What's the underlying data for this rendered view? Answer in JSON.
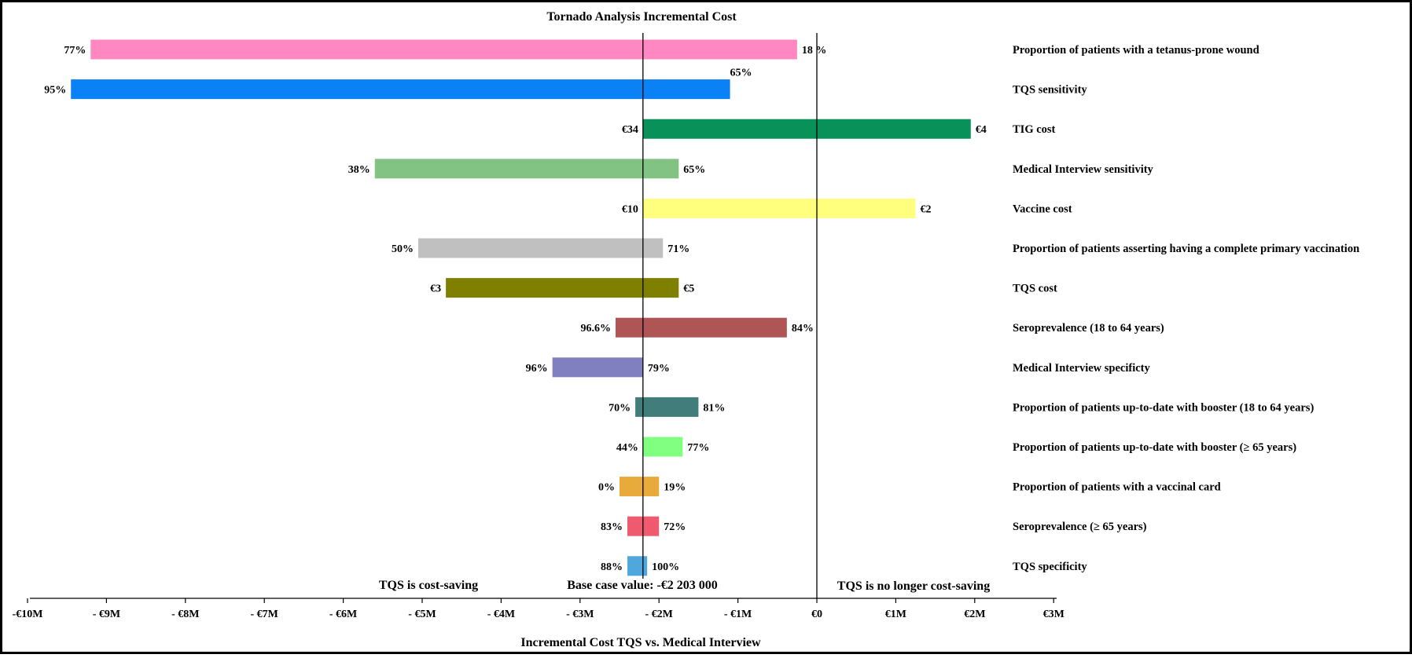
{
  "chart_data": {
    "type": "bar",
    "orientation": "horizontal",
    "title": "Tornado Analysis Incremental Cost",
    "xlabel": "Incremental Cost TQS vs. Medical Interview",
    "unit": "M€",
    "xlim": [
      -10,
      3
    ],
    "base_value": -2.203,
    "base_label": "Base case value: -€2 203 000",
    "region_labels": {
      "left": "TQS is cost-saving",
      "right": "TQS is no longer cost-saving"
    },
    "ticks": [
      {
        "value": -10,
        "label": "-€10M"
      },
      {
        "value": -9,
        "label": "- €9M"
      },
      {
        "value": -8,
        "label": "- €8M"
      },
      {
        "value": -7,
        "label": "- €7M"
      },
      {
        "value": -6,
        "label": "- €6M"
      },
      {
        "value": -5,
        "label": "- €5M"
      },
      {
        "value": -4,
        "label": "- €4M"
      },
      {
        "value": -3,
        "label": "- €3M"
      },
      {
        "value": -2,
        "label": "- €2M"
      },
      {
        "value": -1,
        "label": "- €1M"
      },
      {
        "value": 0,
        "label": "€0"
      },
      {
        "value": 1,
        "label": "€1M"
      },
      {
        "value": 2,
        "label": "€2M"
      },
      {
        "value": 3,
        "label": "€3M"
      }
    ],
    "bars": [
      {
        "name": "Proportion of patients with a tetanus-prone wound",
        "low": -9.2,
        "high": -0.25,
        "low_label": "77%",
        "high_label": "18 %",
        "color": "#FF88C2"
      },
      {
        "name": "TQS sensitivity",
        "low": -9.45,
        "high": -1.1,
        "low_label": "95%",
        "high_label": "65%",
        "color": "#0A82F5"
      },
      {
        "name": "TIG cost",
        "low": -2.203,
        "high": 1.95,
        "low_label": "€34",
        "high_label": "€4",
        "color": "#08925A"
      },
      {
        "name": "Medical Interview sensitivity",
        "low": -5.6,
        "high": -1.75,
        "low_label": "38%",
        "high_label": "65%",
        "color": "#82C383"
      },
      {
        "name": "Vaccine cost",
        "low": -2.203,
        "high": 1.25,
        "low_label": "€10",
        "high_label": "€2",
        "color": "#FFFF7D"
      },
      {
        "name": "Proportion of patients asserting having a complete primary vaccination",
        "low": -5.05,
        "high": -1.95,
        "low_label": "50%",
        "high_label": "71%",
        "color": "#C0C0C0"
      },
      {
        "name": "TQS cost",
        "low": -4.7,
        "high": -1.75,
        "low_label": "€3",
        "high_label": "€5",
        "color": "#808000"
      },
      {
        "name": "Seroprevalence (18 to 64 years)",
        "low": -2.55,
        "high": -0.38,
        "low_label": "96.6%",
        "high_label": "84%",
        "color": "#AF5555"
      },
      {
        "name": "Medical Interview specificty",
        "low": -3.35,
        "high": -2.203,
        "low_label": "96%",
        "high_label": "79%",
        "color": "#8080C0"
      },
      {
        "name": "Proportion of patients up-to-date with  booster (18 to 64 years)",
        "low": -2.3,
        "high": -1.5,
        "low_label": "70%",
        "high_label": "81%",
        "color": "#417D7A"
      },
      {
        "name": "Proportion of patients up-to-date with booster (≥ 65 years)",
        "low": -2.203,
        "high": -1.7,
        "low_label": "44%",
        "high_label": "77%",
        "color": "#80FF80"
      },
      {
        "name": "Proportion of patients with a vaccinal card",
        "low": -2.5,
        "high": -2.0,
        "low_label": "0%",
        "high_label": "19%",
        "color": "#E8AA3A"
      },
      {
        "name": "Seroprevalence (≥ 65 years)",
        "low": -2.4,
        "high": -2.0,
        "low_label": "83%",
        "high_label": "72%",
        "color": "#F05A6E"
      },
      {
        "name": "TQS specificity",
        "low": -2.4,
        "high": -2.15,
        "low_label": "88%",
        "high_label": "100%",
        "color": "#4FA7DE"
      }
    ]
  }
}
